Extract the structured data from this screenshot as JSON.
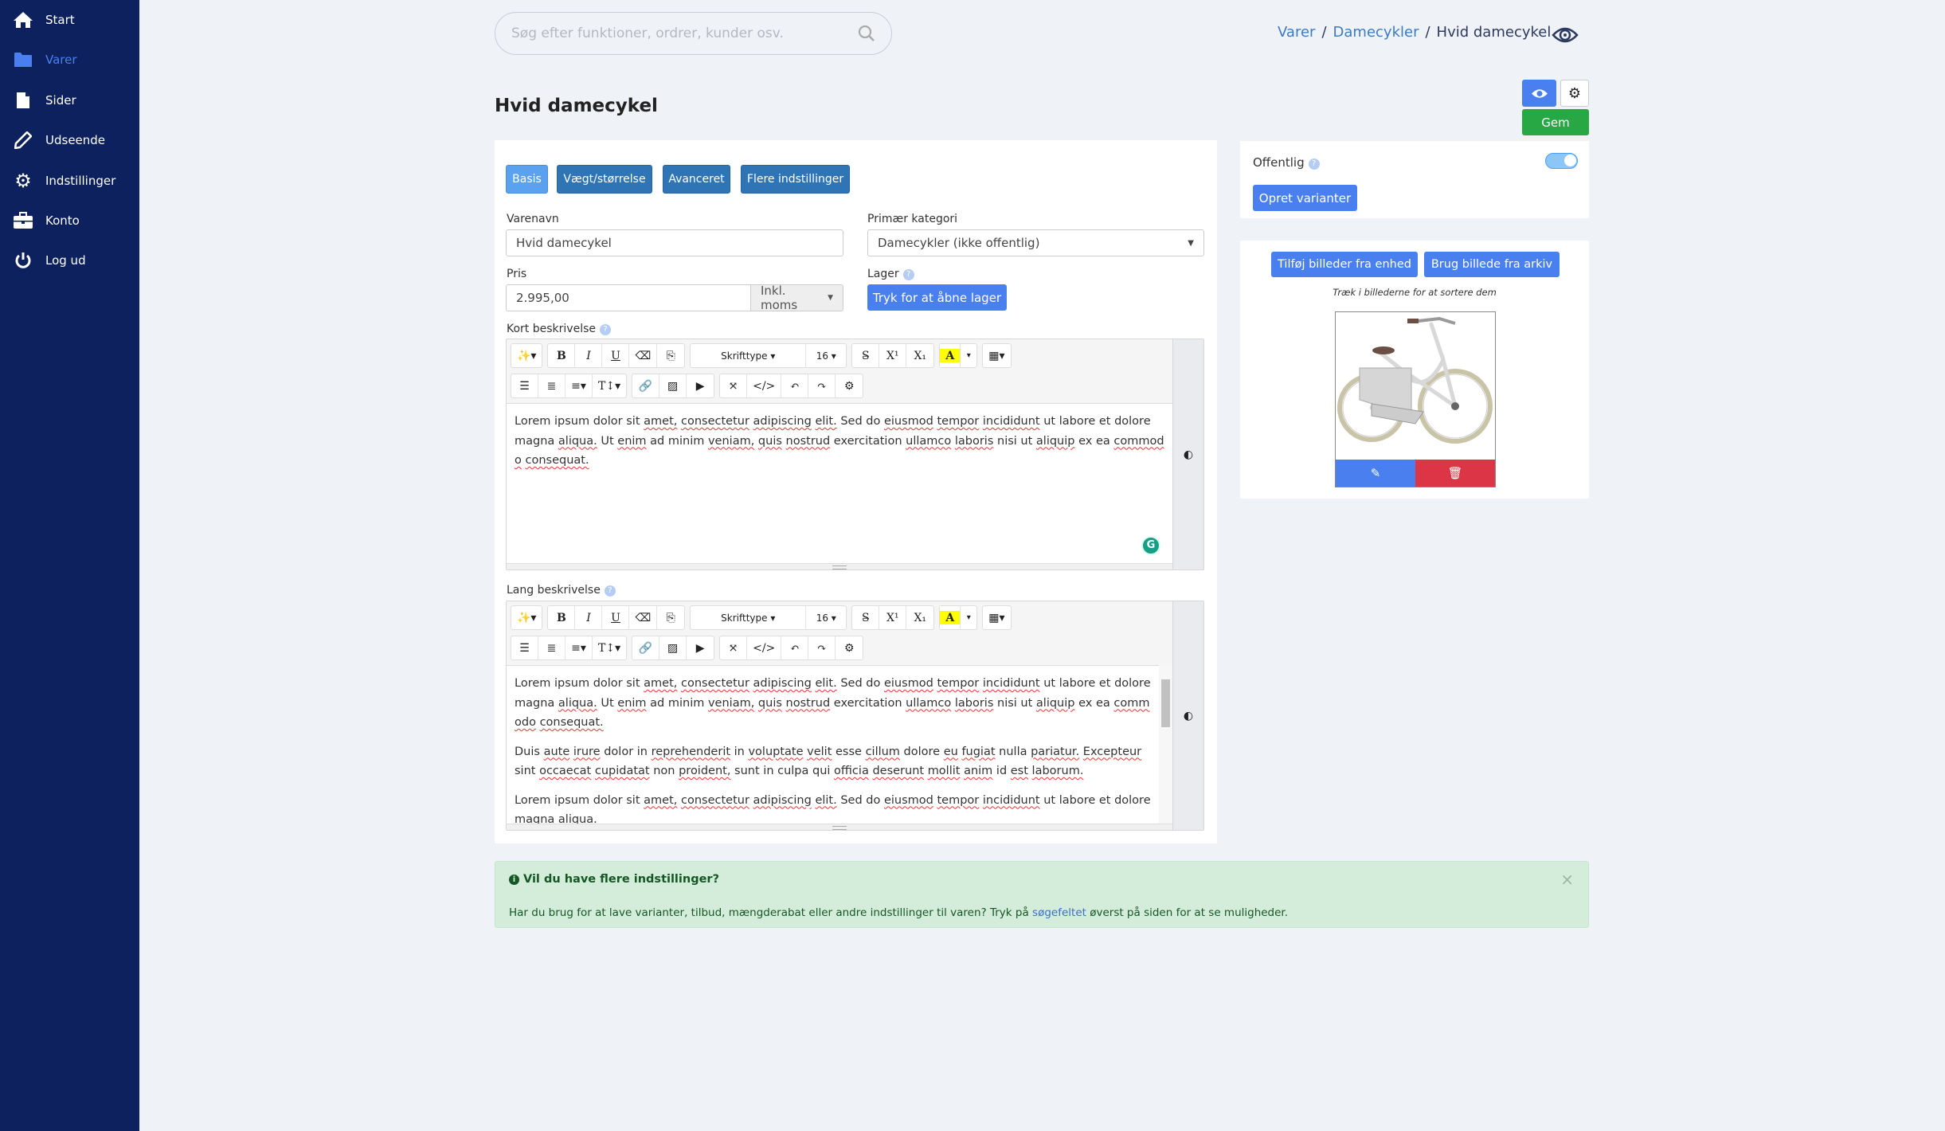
{
  "sidebar": {
    "items": [
      {
        "label": "Start",
        "icon": "home-icon",
        "active": false
      },
      {
        "label": "Varer",
        "icon": "folder-icon",
        "active": true
      },
      {
        "label": "Sider",
        "icon": "file-icon",
        "active": false
      },
      {
        "label": "Udseende",
        "icon": "pencil-icon",
        "active": false
      },
      {
        "label": "Indstillinger",
        "icon": "gear-icon",
        "active": false
      },
      {
        "label": "Konto",
        "icon": "briefcase-icon",
        "active": false
      },
      {
        "label": "Log ud",
        "icon": "power-icon",
        "active": false
      }
    ]
  },
  "search": {
    "placeholder": "Søg efter funktioner, ordrer, kunder osv."
  },
  "breadcrumb": {
    "items": [
      "Varer",
      "Damecykler"
    ],
    "current": "Hvid damecykel",
    "separator": "/"
  },
  "page": {
    "title": "Hvid damecykel"
  },
  "actions": {
    "save": "Gem"
  },
  "tabs": [
    {
      "label": "Basis",
      "active": true
    },
    {
      "label": "Vægt/størrelse"
    },
    {
      "label": "Avanceret"
    },
    {
      "label": "Flere indstillinger"
    }
  ],
  "form": {
    "name": {
      "label": "Varenavn",
      "value": "Hvid damecykel"
    },
    "category": {
      "label": "Primær kategori",
      "value": "Damecykler (ikke offentlig)"
    },
    "price": {
      "label": "Pris",
      "value": "2.995,00",
      "tax": "Inkl. moms"
    },
    "stock": {
      "label": "Lager",
      "button": "Tryk for at åbne lager"
    },
    "short_desc": {
      "label": "Kort beskrivelse",
      "paragraphs": [
        "Lorem ipsum dolor sit amet, consectetur adipiscing elit. Sed do eiusmod tempor incididunt ut labore et dolore magna aliqua. Ut enim ad minim veniam, quis nostrud exercitation ullamco laboris nisi ut aliquip ex ea commodo consequat."
      ]
    },
    "long_desc": {
      "label": "Lang beskrivelse",
      "paragraphs": [
        "Lorem ipsum dolor sit amet, consectetur adipiscing elit. Sed do eiusmod tempor incididunt ut labore et dolore magna aliqua. Ut enim ad minim veniam, quis nostrud exercitation ullamco laboris nisi ut aliquip ex ea commodo consequat.",
        "Duis aute irure dolor in reprehenderit in voluptate velit esse cillum dolore eu fugiat nulla pariatur. Excepteur sint occaecat cupidatat non proident, sunt in culpa qui officia deserunt mollit anim id est laborum.",
        "Lorem ipsum dolor sit amet, consectetur adipiscing elit. Sed do eiusmod tempor incididunt ut labore et dolore magna aliqua."
      ]
    }
  },
  "toolbar": {
    "font_label": "Skrifttype",
    "size_label": "16",
    "row1": [
      [
        [
          "magic-icon",
          "✨▾"
        ]
      ],
      [
        [
          "bold-icon",
          "B"
        ],
        [
          "italic-icon",
          "I"
        ],
        [
          "underline-icon",
          "U"
        ],
        [
          "eraser-icon",
          "⌫"
        ],
        [
          "paste-icon",
          "⎘"
        ]
      ],
      [
        [
          "font-family-select",
          "Skrifttype ▾"
        ],
        [
          "font-size-select",
          "16 ▾"
        ]
      ],
      [
        [
          "strikethrough-icon",
          "S̶"
        ],
        [
          "superscript-icon",
          "X¹"
        ],
        [
          "subscript-icon",
          "X₁"
        ]
      ],
      [
        [
          "text-color-icon",
          "A"
        ],
        [
          "color-dropdown-icon",
          "▾"
        ]
      ],
      [
        [
          "table-icon",
          "▦▾"
        ]
      ]
    ],
    "row2": [
      [
        [
          "unordered-list-icon",
          "☰"
        ],
        [
          "ordered-list-icon",
          "≣"
        ],
        [
          "align-icon",
          "≡▾"
        ],
        [
          "text-height-icon",
          "T↕▾"
        ]
      ],
      [
        [
          "link-icon",
          "🔗"
        ],
        [
          "image-icon",
          "▨"
        ],
        [
          "video-icon",
          "▶"
        ]
      ],
      [
        [
          "fullscreen-icon",
          "⤧"
        ],
        [
          "code-icon",
          "</>"
        ],
        [
          "undo-icon",
          "↶"
        ],
        [
          "redo-icon",
          "↷"
        ],
        [
          "ai-chip-icon",
          "⚙"
        ]
      ]
    ]
  },
  "spell_flagged": [
    "amet",
    "consectetur",
    "adipiscing",
    "elit",
    "eiusmod",
    "tempor",
    "incididunt",
    "aliqua",
    "enim",
    "veniam",
    "quis",
    "nostrud",
    "ullamco",
    "laboris",
    "aliquip",
    "commodo",
    "consequat",
    "aute",
    "irure",
    "reprehenderit",
    "voluptate",
    "velit",
    "cillum",
    "eu",
    "fugiat",
    "pariatur",
    "Excepteur",
    "occaecat",
    "cupidatat",
    "proident",
    "officia",
    "deserunt",
    "mollit",
    "anim",
    "est",
    "laborum"
  ],
  "visibility": {
    "label": "Offentlig",
    "enabled": true,
    "variants_button": "Opret varianter"
  },
  "images": {
    "add_device": "Tilføj billeder fra enhed",
    "from_archive": "Brug billede fra arkiv",
    "hint": "Træk i billederne for at sortere dem"
  },
  "alert": {
    "title": "Vil du have flere indstillinger?",
    "text_before": "Har du brug for at lave varianter, tilbud, mængderabat eller andre indstillinger til varen? Tryk på ",
    "link": "søgefeltet",
    "text_after": " øverst på siden for at se muligheder."
  },
  "colors": {
    "sidebar": "#0c215e",
    "primary": "#4a7ff0",
    "tab": "#2f75b5",
    "success": "#28a745",
    "danger": "#dc3545",
    "alert_bg": "#d4edda"
  }
}
